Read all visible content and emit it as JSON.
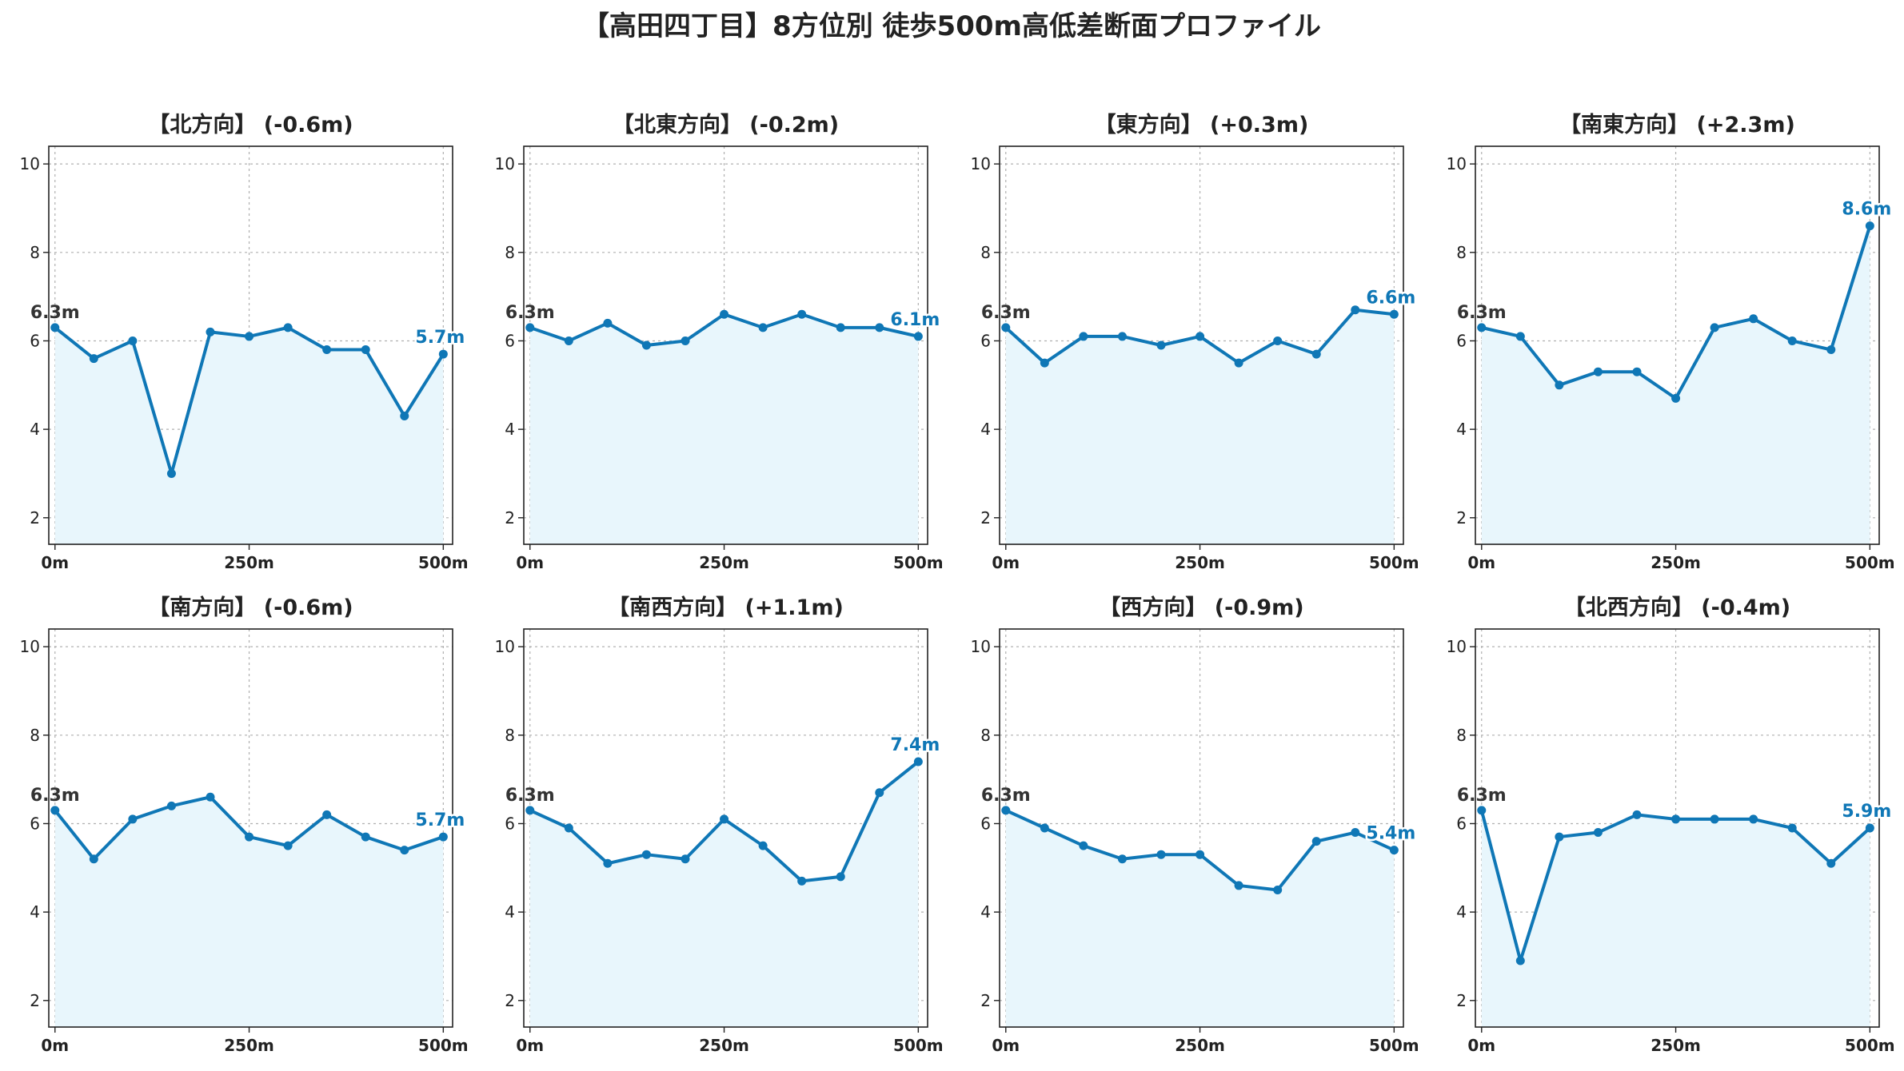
{
  "title": "【高田四丁目】8方位別 徒歩500m高低差断面プロファイル",
  "colors": {
    "line": "#0f77b6",
    "fill": "#e8f6fc",
    "grid": "#b0b0b0",
    "start_label": "#333333"
  },
  "chart_data": [
    {
      "type": "line",
      "title": "【北方向】 (-0.6m)",
      "x": [
        0,
        50,
        100,
        150,
        200,
        250,
        300,
        350,
        400,
        450,
        500
      ],
      "values": [
        6.3,
        5.6,
        6.0,
        3.0,
        6.2,
        6.1,
        6.3,
        5.8,
        5.8,
        4.3,
        5.7
      ],
      "start_label": "6.3m",
      "end_label": "5.7m",
      "xticks": [
        0,
        250,
        500
      ],
      "xtick_labels": [
        "0m",
        "250m",
        "500m"
      ],
      "yticks": [
        2,
        4,
        6,
        8,
        10
      ],
      "ylim": [
        1.4,
        10.4
      ],
      "xlim": [
        -8,
        512
      ],
      "grid": true,
      "fill_under": true
    },
    {
      "type": "line",
      "title": "【北東方向】 (-0.2m)",
      "x": [
        0,
        50,
        100,
        150,
        200,
        250,
        300,
        350,
        400,
        450,
        500
      ],
      "values": [
        6.3,
        6.0,
        6.4,
        5.9,
        6.0,
        6.6,
        6.3,
        6.6,
        6.3,
        6.3,
        6.1
      ],
      "start_label": "6.3m",
      "end_label": "6.1m",
      "xticks": [
        0,
        250,
        500
      ],
      "xtick_labels": [
        "0m",
        "250m",
        "500m"
      ],
      "yticks": [
        2,
        4,
        6,
        8,
        10
      ],
      "ylim": [
        1.4,
        10.4
      ],
      "xlim": [
        -8,
        512
      ],
      "grid": true,
      "fill_under": true
    },
    {
      "type": "line",
      "title": "【東方向】 (+0.3m)",
      "x": [
        0,
        50,
        100,
        150,
        200,
        250,
        300,
        350,
        400,
        450,
        500
      ],
      "values": [
        6.3,
        5.5,
        6.1,
        6.1,
        5.9,
        6.1,
        5.5,
        6.0,
        5.7,
        6.7,
        6.6
      ],
      "start_label": "6.3m",
      "end_label": "6.6m",
      "xticks": [
        0,
        250,
        500
      ],
      "xtick_labels": [
        "0m",
        "250m",
        "500m"
      ],
      "yticks": [
        2,
        4,
        6,
        8,
        10
      ],
      "ylim": [
        1.4,
        10.4
      ],
      "xlim": [
        -8,
        512
      ],
      "grid": true,
      "fill_under": true
    },
    {
      "type": "line",
      "title": "【南東方向】 (+2.3m)",
      "x": [
        0,
        50,
        100,
        150,
        200,
        250,
        300,
        350,
        400,
        450,
        500
      ],
      "values": [
        6.3,
        6.1,
        5.0,
        5.3,
        5.3,
        4.7,
        6.3,
        6.5,
        6.0,
        5.8,
        8.6
      ],
      "start_label": "6.3m",
      "end_label": "8.6m",
      "xticks": [
        0,
        250,
        500
      ],
      "xtick_labels": [
        "0m",
        "250m",
        "500m"
      ],
      "yticks": [
        2,
        4,
        6,
        8,
        10
      ],
      "ylim": [
        1.4,
        10.4
      ],
      "xlim": [
        -8,
        512
      ],
      "grid": true,
      "fill_under": true
    },
    {
      "type": "line",
      "title": "【南方向】 (-0.6m)",
      "x": [
        0,
        50,
        100,
        150,
        200,
        250,
        300,
        350,
        400,
        450,
        500
      ],
      "values": [
        6.3,
        5.2,
        6.1,
        6.4,
        6.6,
        5.7,
        5.5,
        6.2,
        5.7,
        5.4,
        5.7
      ],
      "start_label": "6.3m",
      "end_label": "5.7m",
      "xticks": [
        0,
        250,
        500
      ],
      "xtick_labels": [
        "0m",
        "250m",
        "500m"
      ],
      "yticks": [
        2,
        4,
        6,
        8,
        10
      ],
      "ylim": [
        1.4,
        10.4
      ],
      "xlim": [
        -8,
        512
      ],
      "grid": true,
      "fill_under": true
    },
    {
      "type": "line",
      "title": "【南西方向】 (+1.1m)",
      "x": [
        0,
        50,
        100,
        150,
        200,
        250,
        300,
        350,
        400,
        450,
        500
      ],
      "values": [
        6.3,
        5.9,
        5.1,
        5.3,
        5.2,
        6.1,
        5.5,
        4.7,
        4.8,
        6.7,
        7.4
      ],
      "start_label": "6.3m",
      "end_label": "7.4m",
      "xticks": [
        0,
        250,
        500
      ],
      "xtick_labels": [
        "0m",
        "250m",
        "500m"
      ],
      "yticks": [
        2,
        4,
        6,
        8,
        10
      ],
      "ylim": [
        1.4,
        10.4
      ],
      "xlim": [
        -8,
        512
      ],
      "grid": true,
      "fill_under": true
    },
    {
      "type": "line",
      "title": "【西方向】 (-0.9m)",
      "x": [
        0,
        50,
        100,
        150,
        200,
        250,
        300,
        350,
        400,
        450,
        500
      ],
      "values": [
        6.3,
        5.9,
        5.5,
        5.2,
        5.3,
        5.3,
        4.6,
        4.5,
        5.6,
        5.8,
        5.4
      ],
      "start_label": "6.3m",
      "end_label": "5.4m",
      "xticks": [
        0,
        250,
        500
      ],
      "xtick_labels": [
        "0m",
        "250m",
        "500m"
      ],
      "yticks": [
        2,
        4,
        6,
        8,
        10
      ],
      "ylim": [
        1.4,
        10.4
      ],
      "xlim": [
        -8,
        512
      ],
      "grid": true,
      "fill_under": true
    },
    {
      "type": "line",
      "title": "【北西方向】 (-0.4m)",
      "x": [
        0,
        50,
        100,
        150,
        200,
        250,
        300,
        350,
        400,
        450,
        500
      ],
      "values": [
        6.3,
        2.9,
        5.7,
        5.8,
        6.2,
        6.1,
        6.1,
        6.1,
        5.9,
        5.1,
        5.9
      ],
      "start_label": "6.3m",
      "end_label": "5.9m",
      "xticks": [
        0,
        250,
        500
      ],
      "xtick_labels": [
        "0m",
        "250m",
        "500m"
      ],
      "yticks": [
        2,
        4,
        6,
        8,
        10
      ],
      "ylim": [
        1.4,
        10.4
      ],
      "xlim": [
        -8,
        512
      ],
      "grid": true,
      "fill_under": true
    }
  ]
}
